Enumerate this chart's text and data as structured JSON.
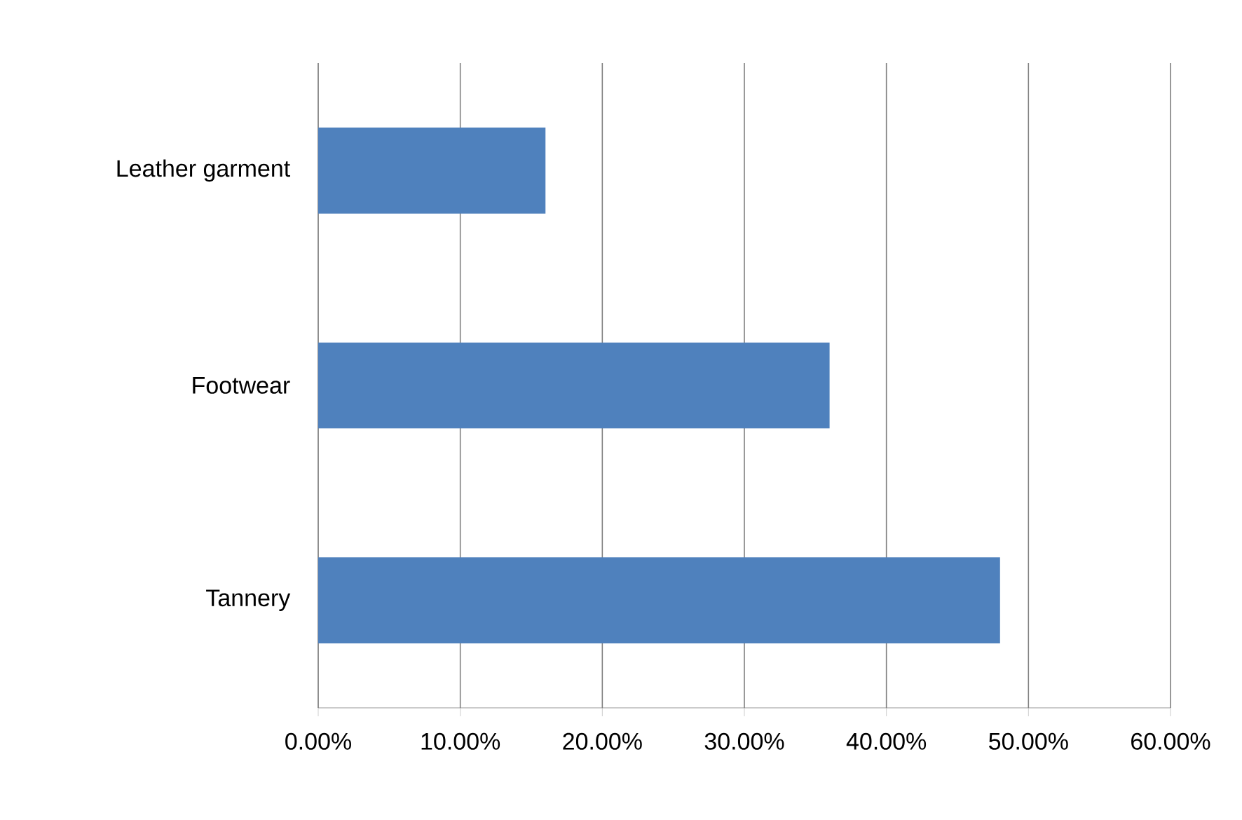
{
  "chart_data": {
    "type": "bar",
    "orientation": "horizontal",
    "categories": [
      "Leather garment",
      "Footwear",
      "Tannery"
    ],
    "values": [
      16,
      36,
      48
    ],
    "color": "#4f81bd",
    "xlim": [
      0,
      60
    ],
    "xticks": [
      {
        "value": 0,
        "label": "0.00%"
      },
      {
        "value": 10,
        "label": "10.00%"
      },
      {
        "value": 20,
        "label": "20.00%"
      },
      {
        "value": 30,
        "label": "30.00%"
      },
      {
        "value": 40,
        "label": "40.00%"
      },
      {
        "value": 50,
        "label": "50.00%"
      },
      {
        "value": 60,
        "label": "60.00%"
      }
    ],
    "grid": "x"
  }
}
